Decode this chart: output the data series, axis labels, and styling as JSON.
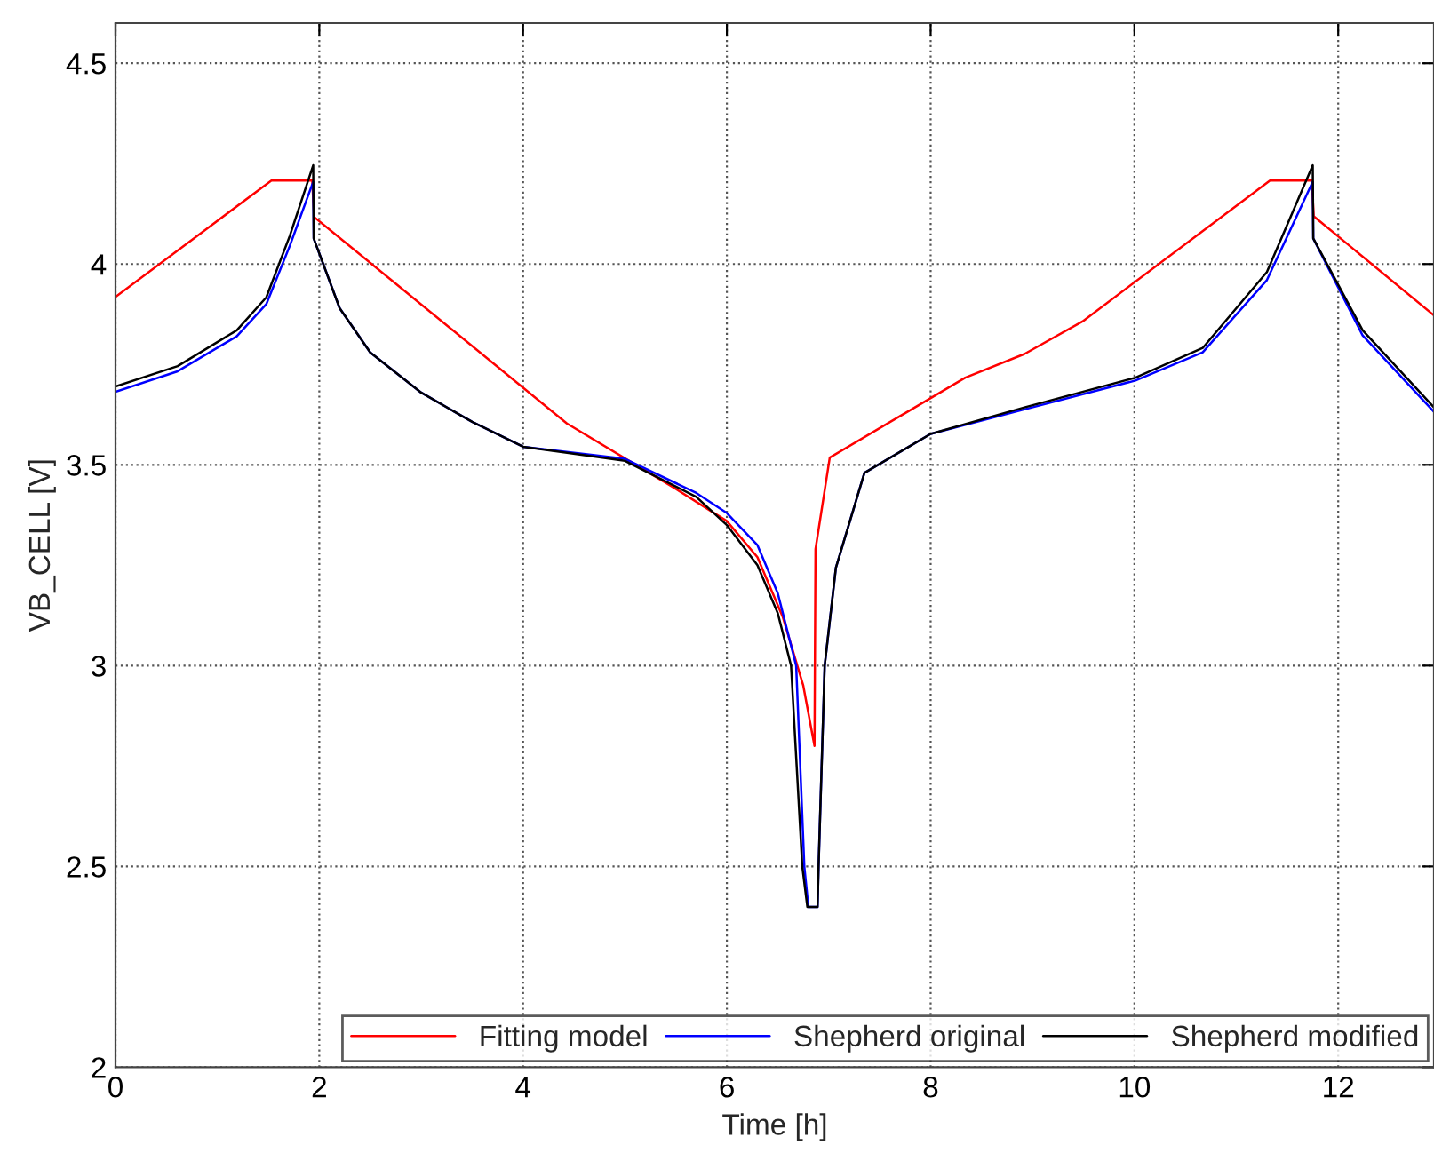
{
  "chart_data": {
    "type": "line",
    "xlabel": "Time [h]",
    "ylabel": "VB_CELL [V]",
    "xlim": [
      0,
      12.94
    ],
    "ylim": [
      2,
      4.6
    ],
    "xticks": [
      0,
      2,
      4,
      6,
      8,
      10,
      12
    ],
    "yticks": [
      2,
      2.5,
      3,
      3.5,
      4,
      4.5
    ],
    "grid": true,
    "legend": "bottom right",
    "line_style": "solid",
    "series": [
      {
        "name": "Fitting model",
        "color": "#ff0000",
        "x": [
          0,
          1.53,
          1.93,
          1.95,
          4.43,
          5.5,
          6.0,
          6.3,
          6.55,
          6.75,
          6.86,
          6.87,
          7.01,
          8.34,
          8.92,
          9.49,
          11.33,
          11.74,
          11.76,
          12.94
        ],
        "values": [
          3.918,
          4.208,
          4.208,
          4.117,
          3.603,
          3.44,
          3.36,
          3.27,
          3.12,
          2.95,
          2.8,
          3.29,
          3.518,
          3.717,
          3.776,
          3.857,
          4.208,
          4.208,
          4.119,
          3.872
        ]
      },
      {
        "name": "Shepherd original",
        "color": "#0000ff",
        "x": [
          0,
          0.61,
          1.19,
          1.48,
          1.71,
          1.94,
          1.945,
          2.2,
          2.5,
          3.0,
          3.5,
          4.0,
          5.0,
          5.7,
          6.0,
          6.3,
          6.5,
          6.68,
          6.76,
          6.8,
          6.89,
          6.9,
          6.96,
          7.07,
          7.35,
          8.0,
          8.92,
          10.01,
          10.67,
          11.3,
          11.75,
          11.755,
          12.24,
          12.94
        ],
        "values": [
          3.682,
          3.733,
          3.82,
          3.9,
          4.045,
          4.205,
          4.064,
          3.89,
          3.78,
          3.68,
          3.607,
          3.545,
          3.515,
          3.43,
          3.38,
          3.3,
          3.18,
          3.0,
          2.5,
          2.399,
          2.399,
          2.5,
          3.0,
          3.244,
          3.48,
          3.577,
          3.638,
          3.71,
          3.78,
          3.96,
          4.205,
          4.064,
          3.822,
          3.632
        ]
      },
      {
        "name": "Shepherd modified",
        "color": "#000000",
        "x": [
          0,
          0.61,
          1.19,
          1.48,
          1.71,
          1.94,
          1.945,
          2.2,
          2.5,
          3.0,
          3.5,
          4.0,
          5.0,
          5.7,
          6.0,
          6.3,
          6.5,
          6.63,
          6.74,
          6.79,
          6.89,
          6.9,
          6.96,
          7.07,
          7.35,
          8.0,
          8.92,
          10.01,
          10.67,
          11.3,
          11.75,
          11.755,
          12.24,
          12.94
        ],
        "values": [
          3.695,
          3.746,
          3.835,
          3.917,
          4.07,
          4.246,
          4.064,
          3.89,
          3.78,
          3.68,
          3.607,
          3.545,
          3.51,
          3.42,
          3.35,
          3.25,
          3.13,
          3.0,
          2.5,
          2.399,
          2.399,
          2.5,
          3.0,
          3.244,
          3.48,
          3.577,
          3.643,
          3.717,
          3.791,
          3.98,
          4.246,
          4.064,
          3.835,
          3.643
        ]
      }
    ]
  }
}
